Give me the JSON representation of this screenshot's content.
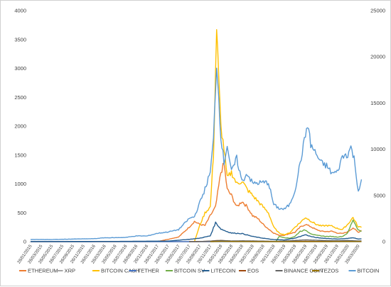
{
  "chart_data": {
    "type": "line",
    "grid": false,
    "legend_position": "bottom",
    "y_left": {
      "min": 0,
      "max": 4000,
      "ticks": [
        0,
        500,
        1000,
        1500,
        2000,
        2500,
        3000,
        3500,
        4000
      ]
    },
    "y_right": {
      "min": 0,
      "max": 25000,
      "ticks": [
        0,
        5000,
        10000,
        15000,
        20000,
        25000
      ]
    },
    "x_labels": [
      "26/01/2015",
      "26/03/2015",
      "26/05/2015",
      "26/07/2015",
      "26/09/2015",
      "26/11/2015",
      "26/01/2016",
      "26/03/2016",
      "26/05/2016",
      "26/07/2016",
      "26/09/2016",
      "26/11/2016",
      "26/01/2017",
      "26/03/2017",
      "26/05/2017",
      "26/07/2017",
      "26/09/2017",
      "26/11/2017",
      "26/01/2018",
      "26/03/2018",
      "26/05/2018",
      "26/07/2018",
      "26/09/2018",
      "26/11/2018",
      "26/01/2019",
      "26/03/2019",
      "26/05/2019",
      "26/07/2019",
      "26/09/2019",
      "26/11/2019",
      "26/01/2020",
      "26/03/2020"
    ],
    "series": [
      {
        "name": "ETHEREUM",
        "axis": "left",
        "color": "#ED7D31",
        "points": [
          [
            0,
            0
          ],
          [
            8,
            0
          ],
          [
            12,
            2
          ],
          [
            14,
            80
          ],
          [
            15,
            250
          ],
          [
            15.5,
            350
          ],
          [
            16,
            300
          ],
          [
            16.5,
            280
          ],
          [
            17,
            450
          ],
          [
            17.5,
            600
          ],
          [
            18,
            1200
          ],
          [
            18.3,
            1350
          ],
          [
            18.6,
            900
          ],
          [
            19,
            800
          ],
          [
            19.5,
            600
          ],
          [
            20,
            700
          ],
          [
            20.5,
            600
          ],
          [
            21,
            450
          ],
          [
            21.5,
            400
          ],
          [
            22,
            300
          ],
          [
            22.5,
            220
          ],
          [
            23,
            150
          ],
          [
            23.5,
            110
          ],
          [
            24,
            110
          ],
          [
            24.5,
            140
          ],
          [
            25,
            160
          ],
          [
            25.5,
            250
          ],
          [
            26,
            300
          ],
          [
            26.5,
            260
          ],
          [
            27,
            210
          ],
          [
            27.5,
            180
          ],
          [
            28,
            175
          ],
          [
            28.5,
            180
          ],
          [
            29,
            150
          ],
          [
            29.5,
            140
          ],
          [
            30,
            170
          ],
          [
            30.5,
            240
          ],
          [
            31,
            160
          ],
          [
            31.3,
            200
          ]
        ]
      },
      {
        "name": "XRP",
        "axis": "left",
        "color": "#A5A5A5",
        "points": [
          [
            0,
            0
          ],
          [
            15,
            0
          ],
          [
            17,
            0.5
          ],
          [
            17.5,
            2
          ],
          [
            18,
            3
          ],
          [
            19,
            1
          ],
          [
            20,
            0.5
          ],
          [
            31.3,
            0.2
          ]
        ]
      },
      {
        "name": "BITCOIN CASH",
        "axis": "left",
        "color": "#FFC000",
        "points": [
          [
            15.5,
            0
          ],
          [
            16,
            280
          ],
          [
            16.5,
            500
          ],
          [
            17,
            600
          ],
          [
            17.3,
            1500
          ],
          [
            17.6,
            3700
          ],
          [
            17.8,
            2800
          ],
          [
            18,
            2000
          ],
          [
            18.3,
            1600
          ],
          [
            18.6,
            1100
          ],
          [
            19,
            1200
          ],
          [
            19.5,
            1000
          ],
          [
            20,
            1050
          ],
          [
            20.5,
            900
          ],
          [
            21,
            800
          ],
          [
            21.5,
            700
          ],
          [
            22,
            600
          ],
          [
            22.5,
            500
          ],
          [
            23,
            250
          ],
          [
            23.5,
            150
          ],
          [
            24,
            120
          ],
          [
            24.5,
            150
          ],
          [
            25,
            250
          ],
          [
            25.5,
            330
          ],
          [
            26,
            420
          ],
          [
            26.5,
            360
          ],
          [
            27,
            300
          ],
          [
            27.5,
            270
          ],
          [
            28,
            280
          ],
          [
            28.5,
            270
          ],
          [
            29,
            230
          ],
          [
            29.5,
            210
          ],
          [
            30,
            300
          ],
          [
            30.5,
            420
          ],
          [
            31,
            250
          ],
          [
            31.3,
            260
          ]
        ]
      },
      {
        "name": "TETHER",
        "axis": "left",
        "color": "#4472C4",
        "points": [
          [
            0,
            0
          ],
          [
            31.3,
            1
          ]
        ]
      },
      {
        "name": "BITCOIN SV",
        "axis": "left",
        "color": "#70AD47",
        "points": [
          [
            23.2,
            0
          ],
          [
            23.5,
            90
          ],
          [
            24,
            70
          ],
          [
            24.5,
            60
          ],
          [
            25,
            90
          ],
          [
            25.5,
            180
          ],
          [
            26,
            200
          ],
          [
            26.5,
            140
          ],
          [
            27,
            110
          ],
          [
            27.5,
            100
          ],
          [
            28,
            90
          ],
          [
            28.5,
            90
          ],
          [
            29,
            80
          ],
          [
            29.5,
            90
          ],
          [
            30,
            150
          ],
          [
            30.5,
            380
          ],
          [
            31,
            200
          ],
          [
            31.3,
            180
          ]
        ]
      },
      {
        "name": "LITECOIN",
        "axis": "left",
        "color": "#255E91",
        "points": [
          [
            0,
            2
          ],
          [
            8,
            4
          ],
          [
            13,
            10
          ],
          [
            15,
            40
          ],
          [
            16,
            60
          ],
          [
            17,
            100
          ],
          [
            17.5,
            330
          ],
          [
            18,
            220
          ],
          [
            18.5,
            180
          ],
          [
            19,
            150
          ],
          [
            20,
            140
          ],
          [
            21,
            90
          ],
          [
            22,
            60
          ],
          [
            23,
            35
          ],
          [
            24,
            30
          ],
          [
            25,
            60
          ],
          [
            26,
            120
          ],
          [
            26.5,
            90
          ],
          [
            27,
            70
          ],
          [
            28,
            55
          ],
          [
            29,
            45
          ],
          [
            30,
            55
          ],
          [
            30.5,
            70
          ],
          [
            31,
            45
          ],
          [
            31.3,
            48
          ]
        ]
      },
      {
        "name": "EOS",
        "axis": "left",
        "color": "#9E480E",
        "points": [
          [
            15,
            0
          ],
          [
            16,
            2
          ],
          [
            17,
            8
          ],
          [
            17.5,
            18
          ],
          [
            18,
            20
          ],
          [
            19,
            10
          ],
          [
            20,
            8
          ],
          [
            21,
            5
          ],
          [
            23,
            2.5
          ],
          [
            25,
            5
          ],
          [
            26,
            6
          ],
          [
            27,
            4
          ],
          [
            28,
            3
          ],
          [
            29,
            3
          ],
          [
            30,
            3.5
          ],
          [
            31,
            2.5
          ],
          [
            31.3,
            2.5
          ]
        ]
      },
      {
        "name": "BINANCE COIN",
        "axis": "left",
        "color": "#636363",
        "points": [
          [
            15,
            0
          ],
          [
            16,
            1
          ],
          [
            17,
            10
          ],
          [
            18,
            20
          ],
          [
            19,
            12
          ],
          [
            20,
            14
          ],
          [
            21,
            12
          ],
          [
            22,
            10
          ],
          [
            23,
            5
          ],
          [
            24,
            10
          ],
          [
            25,
            20
          ],
          [
            26,
            30
          ],
          [
            27,
            25
          ],
          [
            28,
            18
          ],
          [
            29,
            16
          ],
          [
            30,
            20
          ],
          [
            31,
            12
          ],
          [
            31.3,
            13
          ]
        ]
      },
      {
        "name": "TEZOS",
        "axis": "left",
        "color": "#997300",
        "points": [
          [
            17,
            0
          ],
          [
            18,
            5
          ],
          [
            19,
            3
          ],
          [
            20,
            2
          ],
          [
            22,
            1
          ],
          [
            24,
            0.5
          ],
          [
            26,
            1
          ],
          [
            28,
            1
          ],
          [
            29,
            2
          ],
          [
            30,
            3
          ],
          [
            31,
            2
          ],
          [
            31.3,
            2
          ]
        ]
      },
      {
        "name": "BITCOIN",
        "axis": "right",
        "color": "#5B9BD5",
        "points": [
          [
            0,
            240
          ],
          [
            2,
            230
          ],
          [
            4,
            280
          ],
          [
            6,
            320
          ],
          [
            7,
            420
          ],
          [
            8,
            430
          ],
          [
            9,
            460
          ],
          [
            10,
            620
          ],
          [
            11,
            610
          ],
          [
            12,
            900
          ],
          [
            13,
            1050
          ],
          [
            14,
            1300
          ],
          [
            15,
            2500
          ],
          [
            15.5,
            2700
          ],
          [
            16,
            4200
          ],
          [
            16.5,
            5700
          ],
          [
            17,
            7500
          ],
          [
            17.3,
            11000
          ],
          [
            17.6,
            19500
          ],
          [
            18,
            11500
          ],
          [
            18.3,
            8500
          ],
          [
            18.6,
            10500
          ],
          [
            19,
            7500
          ],
          [
            19.5,
            9000
          ],
          [
            20,
            6500
          ],
          [
            20.5,
            7400
          ],
          [
            21,
            6300
          ],
          [
            22,
            6400
          ],
          [
            22.5,
            6400
          ],
          [
            23,
            4000
          ],
          [
            23.5,
            3600
          ],
          [
            24,
            3500
          ],
          [
            24.5,
            4000
          ],
          [
            25,
            5500
          ],
          [
            25.5,
            8500
          ],
          [
            26,
            11500
          ],
          [
            26.2,
            12800
          ],
          [
            26.5,
            10500
          ],
          [
            27,
            9500
          ],
          [
            27.5,
            8500
          ],
          [
            28,
            8200
          ],
          [
            28.5,
            7400
          ],
          [
            29,
            7500
          ],
          [
            29.5,
            9200
          ],
          [
            30,
            9500
          ],
          [
            30.3,
            10200
          ],
          [
            30.6,
            9000
          ],
          [
            31,
            5500
          ],
          [
            31.3,
            6500
          ]
        ]
      }
    ]
  }
}
